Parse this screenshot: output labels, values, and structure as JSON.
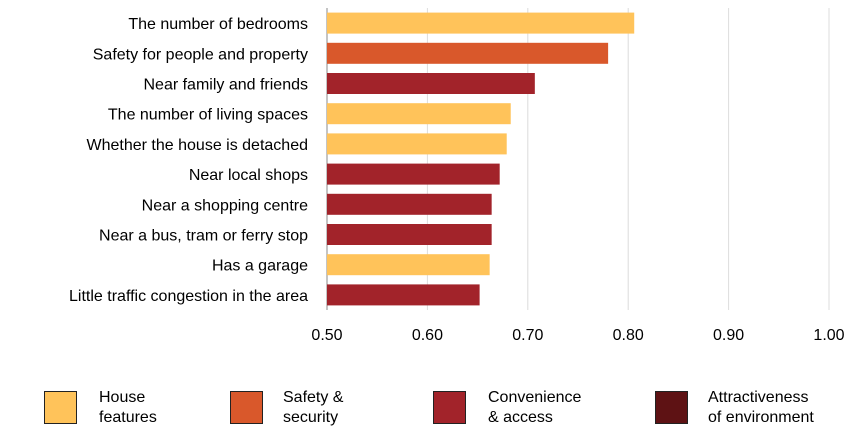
{
  "chart_data": {
    "type": "bar",
    "orientation": "horizontal",
    "categories": [
      "The number of bedrooms",
      "Safety for people and property",
      "Near family and friends",
      "The number of living spaces",
      "Whether the house is detached",
      "Near local shops",
      "Near a shopping centre",
      "Near a bus, tram or ferry stop",
      "Has a garage",
      "Little traffic congestion in the area"
    ],
    "values": [
      0.806,
      0.78,
      0.707,
      0.683,
      0.679,
      0.672,
      0.664,
      0.664,
      0.662,
      0.652
    ],
    "groups": [
      "house",
      "safety",
      "convenience",
      "house",
      "house",
      "convenience",
      "convenience",
      "convenience",
      "house",
      "convenience"
    ],
    "xlim": [
      0.5,
      1.0
    ],
    "xticks": [
      "0.50",
      "0.60",
      "0.70",
      "0.80",
      "0.90",
      "1.00"
    ],
    "tick_values": [
      0.5,
      0.6,
      0.7,
      0.8,
      0.9,
      1.0
    ],
    "grid": true,
    "legend_position": "bottom",
    "legend": [
      {
        "key": "house",
        "line1": "House",
        "line2": "features",
        "color": "#FFC35A"
      },
      {
        "key": "safety",
        "line1": "Safety &",
        "line2": "security",
        "color": "#D9582B"
      },
      {
        "key": "convenience",
        "line1": "Convenience",
        "line2": "& access",
        "color": "#A2232A"
      },
      {
        "key": "attractiveness",
        "line1": "Attractiveness",
        "line2": "of environment",
        "color": "#5E1214"
      }
    ]
  }
}
